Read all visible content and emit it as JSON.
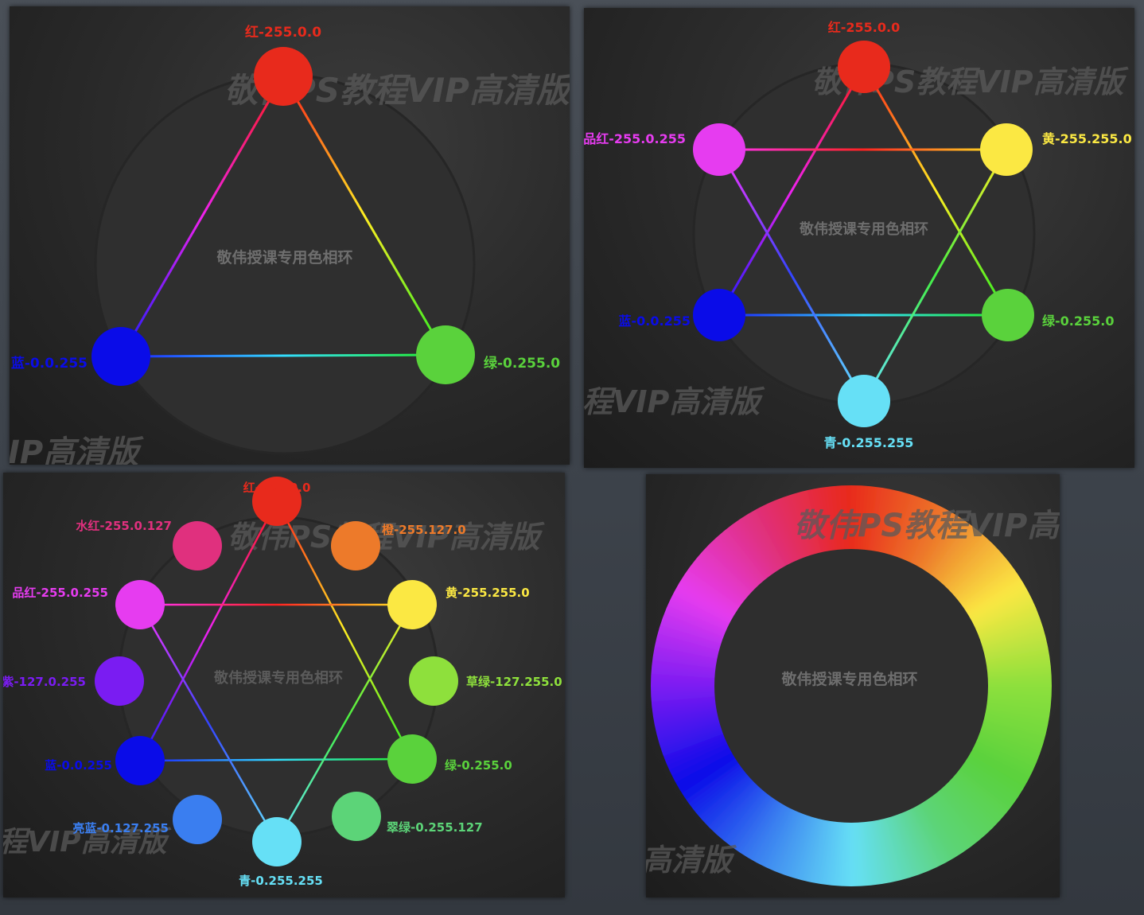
{
  "watermark": {
    "main": "敬伟PS教程VIP高清版",
    "fragment_p1": "IP高清版",
    "fragment_p2": "程VIP高清版",
    "fragment_p3": "程VIP高清版",
    "fragment_p4_top": "敬伟PS教程VIP高",
    "fragment_p4_bottom": "高清版"
  },
  "center_text": "敬伟授课专用色相环",
  "colors": {
    "red": "#e82a1c",
    "green": "#5ad23c",
    "blue": "#0a0ce8",
    "yellow": "#fbe843",
    "magenta": "#e63cf0",
    "cyan": "#66e0f6",
    "orange": "#ed7a2a",
    "rose": "#e0307e",
    "violet": "#7a1cf2",
    "chartreuse": "#8ee03c",
    "spring": "#5cd478",
    "azure": "#3a7ef0"
  },
  "panel1": {
    "red": "红-255.0.0",
    "green": "绿-0.255.0",
    "blue": "蓝-0.0.255"
  },
  "panel2": {
    "red": "红-255.0.0",
    "yellow": "黄-255.255.0",
    "green": "绿-0.255.0",
    "cyan": "青-0.255.255",
    "blue": "蓝-0.0.255",
    "magenta": "品红-255.0.255"
  },
  "panel3": {
    "red": "红-255.0.0",
    "orange": "橙-255.127.0",
    "yellow": "黄-255.255.0",
    "chartreuse": "草绿-127.255.0",
    "green": "绿-0.255.0",
    "spring": "翠绿-0.255.127",
    "cyan": "青-0.255.255",
    "azure": "亮蓝-0.127.255",
    "blue": "蓝-0.0.255",
    "violet": "紫-127.0.255",
    "magenta": "品红-255.0.255",
    "rose": "水红-255.0.127"
  }
}
